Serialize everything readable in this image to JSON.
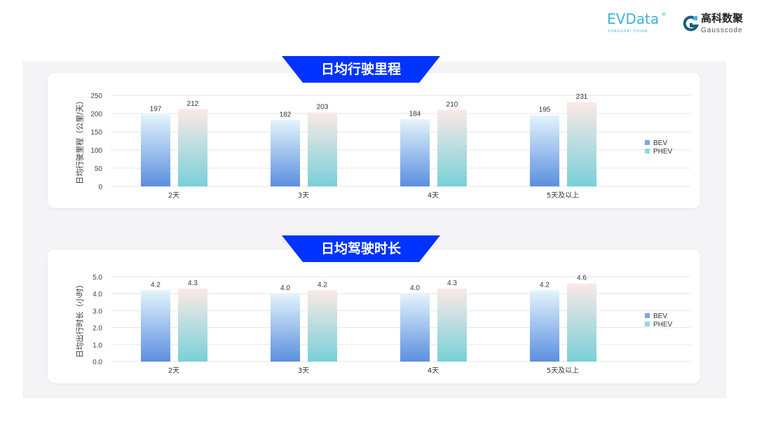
{
  "logos": {
    "evdata": "EVData",
    "evdata_sub": "SHANGHAI CHINA",
    "gauss_cn": "高科数聚",
    "gauss_en": "Gausscode"
  },
  "colors": {
    "banner": "#0033ff",
    "bev_top": "#e3f4fb",
    "bev_bottom": "#5b8fe0",
    "phev_top": "#fbe9e6",
    "phev_bottom": "#78d0d8"
  },
  "chart_data": [
    {
      "type": "bar",
      "title": "日均行驶里程",
      "ylabel": "日均行驶里程（公里/天）",
      "categories": [
        "2天",
        "3天",
        "4天",
        "5天及以上"
      ],
      "series": [
        {
          "name": "BEV",
          "values": [
            197,
            182,
            184,
            195
          ],
          "labels": [
            "197",
            "182",
            "184",
            "195"
          ]
        },
        {
          "name": "PHEV",
          "values": [
            212,
            203,
            210,
            231
          ],
          "labels": [
            "212",
            "203",
            "210",
            "231"
          ]
        }
      ],
      "ylim": [
        0,
        250
      ],
      "yticks": [
        "0",
        "50",
        "100",
        "150",
        "200",
        "250"
      ],
      "grid": true,
      "legend": "right"
    },
    {
      "type": "bar",
      "title": "日均驾驶时长",
      "ylabel": "日均出行时长（小时）",
      "categories": [
        "2天",
        "3天",
        "4天",
        "5天及以上"
      ],
      "series": [
        {
          "name": "BEV",
          "values": [
            4.2,
            4.0,
            4.0,
            4.2
          ],
          "labels": [
            "4.2",
            "4.0",
            "4.0",
            "4.2"
          ]
        },
        {
          "name": "PHEV",
          "values": [
            4.3,
            4.2,
            4.3,
            4.6
          ],
          "labels": [
            "4.3",
            "4.2",
            "4.3",
            "4.6"
          ]
        }
      ],
      "ylim": [
        0,
        5
      ],
      "yticks": [
        "0.0",
        "1.0",
        "2.0",
        "3.0",
        "4.0",
        "5.0"
      ],
      "grid": true,
      "legend": "right"
    }
  ]
}
